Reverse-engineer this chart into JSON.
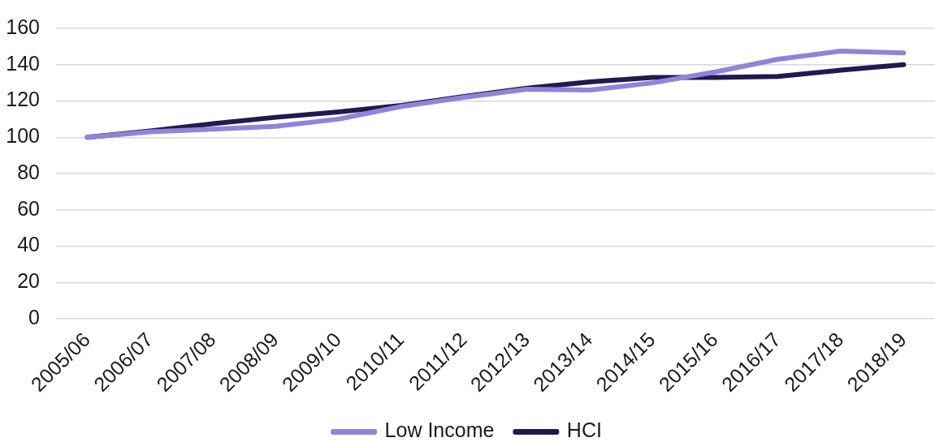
{
  "chart_data": {
    "type": "line",
    "categories": [
      "2005/06",
      "2006/07",
      "2007/08",
      "2008/09",
      "2009/10",
      "2010/11",
      "2011/12",
      "2012/13",
      "2013/14",
      "2014/15",
      "2015/16",
      "2016/17",
      "2017/18",
      "2018/19"
    ],
    "series": [
      {
        "name": "Low Income",
        "color": "#9282da",
        "values": [
          100,
          103,
          104.5,
          106,
          110,
          117,
          122,
          126.5,
          126,
          130,
          136,
          143,
          147.5,
          146.5
        ]
      },
      {
        "name": "HCI",
        "color": "#1f1a4f",
        "values": [
          100,
          103.5,
          107.5,
          111,
          114,
          117.5,
          122.5,
          127,
          130.5,
          133,
          133,
          133.5,
          137,
          140
        ]
      }
    ],
    "ylim": [
      0,
      160
    ],
    "yticks": [
      0,
      20,
      40,
      60,
      80,
      100,
      120,
      140,
      160
    ],
    "grid": "y",
    "legend": "bottom",
    "marker": "none",
    "line_style": "solid"
  }
}
